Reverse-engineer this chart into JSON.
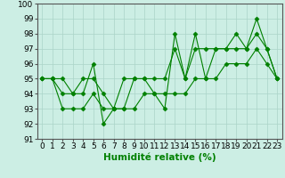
{
  "x": [
    0,
    1,
    2,
    3,
    4,
    5,
    6,
    7,
    8,
    9,
    10,
    11,
    12,
    13,
    14,
    15,
    16,
    17,
    18,
    19,
    20,
    21,
    22,
    23
  ],
  "series1": [
    95,
    95,
    95,
    94,
    94,
    96,
    92,
    93,
    93,
    95,
    95,
    94,
    93,
    98,
    95,
    98,
    95,
    97,
    97,
    98,
    97,
    99,
    97,
    95
  ],
  "series2": [
    95,
    95,
    94,
    94,
    95,
    95,
    94,
    93,
    95,
    95,
    95,
    95,
    95,
    97,
    95,
    97,
    97,
    97,
    97,
    97,
    97,
    98,
    97,
    95
  ],
  "series3": [
    95,
    95,
    93,
    93,
    93,
    94,
    93,
    93,
    93,
    93,
    94,
    94,
    94,
    94,
    94,
    95,
    95,
    95,
    96,
    96,
    96,
    97,
    96,
    95
  ],
  "line_color": "#008000",
  "background_color": "#cceee4",
  "grid_color": "#aad4c8",
  "xlabel": "Humidité relative (%)",
  "ylim": [
    91,
    100
  ],
  "xlim": [
    -0.5,
    23.5
  ],
  "yticks": [
    91,
    92,
    93,
    94,
    95,
    96,
    97,
    98,
    99,
    100
  ],
  "xticks": [
    0,
    1,
    2,
    3,
    4,
    5,
    6,
    7,
    8,
    9,
    10,
    11,
    12,
    13,
    14,
    15,
    16,
    17,
    18,
    19,
    20,
    21,
    22,
    23
  ],
  "xlabel_fontsize": 7.5,
  "tick_fontsize": 6.5,
  "marker": "D",
  "markersize": 2.5,
  "linewidth": 0.8
}
